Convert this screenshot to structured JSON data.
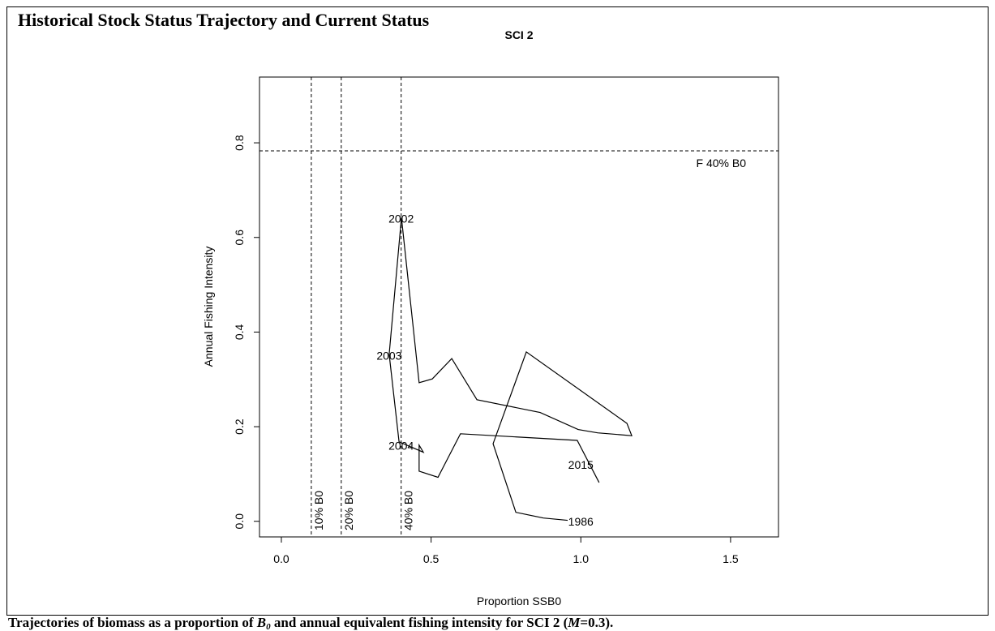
{
  "chart_data": {
    "type": "line",
    "title": "Historical Stock Status Trajectory and Current Status",
    "subtitle": "SCI 2",
    "x_label": "Proportion SSB0",
    "y_label": "Annual Fishing Intensity",
    "caption": [
      "Trajectories of biomass as a proportion of ",
      "B",
      "0",
      " and annual equivalent fishing intensity for SCI 2 (",
      "M",
      "=0.3)."
    ],
    "xlim": [
      -0.073,
      1.66
    ],
    "ylim": [
      -0.033,
      0.939
    ],
    "xticks": [
      {
        "value": 0,
        "label": "0.0"
      },
      0.5,
      {
        "value": 1,
        "label": "1.0"
      },
      1.5
    ],
    "yticks": [
      {
        "value": 0,
        "label": "0.0"
      },
      0.2,
      0.4,
      0.6,
      0.8
    ],
    "color": "#000000",
    "x": [
      0.956,
      0.875,
      0.783,
      0.707,
      0.818,
      1.154,
      1.17,
      1.056,
      0.991,
      0.864,
      0.653,
      0.569,
      0.504,
      0.46,
      0.401,
      0.36,
      0.393,
      0.474,
      0.46,
      0.46,
      0.523,
      0.598,
      0.988,
      1.061
    ],
    "values": [
      0.002,
      0.007,
      0.019,
      0.164,
      0.358,
      0.207,
      0.181,
      0.187,
      0.194,
      0.23,
      0.257,
      0.344,
      0.301,
      0.293,
      0.642,
      0.353,
      0.168,
      0.146,
      0.161,
      0.106,
      0.093,
      0.185,
      0.171,
      0.082
    ],
    "point_labels": [
      {
        "text": "1986",
        "x": 1.0,
        "y": 0.0
      },
      {
        "text": "2002",
        "x": 0.4,
        "y": 0.64
      },
      {
        "text": "2003",
        "x": 0.36,
        "y": 0.35
      },
      {
        "text": "2004",
        "x": 0.4,
        "y": 0.16
      },
      {
        "text": "2015",
        "x": 1.0,
        "y": 0.12
      }
    ],
    "reference_lines": [
      {
        "axis": "x",
        "value": 0.1,
        "label": "10% B0"
      },
      {
        "axis": "x",
        "value": 0.2,
        "label": "20% B0"
      },
      {
        "axis": "x",
        "value": 0.4,
        "label": "40% B0"
      },
      {
        "axis": "y",
        "value": 0.783,
        "label": "F 40% B0"
      }
    ]
  }
}
